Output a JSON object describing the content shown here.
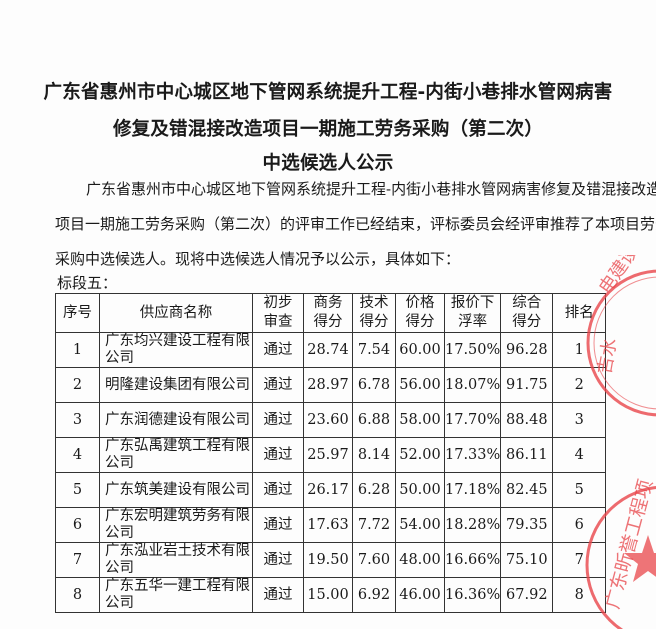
{
  "title": {
    "line1": "广东省惠州市中心城区地下管网系统提升工程-内街小巷排水管网病害",
    "line2": "修复及错混接改造项目一期施工劳务采购（第二次）",
    "line3": "中选候选人公示"
  },
  "paragraph": {
    "line1": "广东省惠州市中心城区地下管网系统提升工程-内街小巷排水管网病害修复及错混接改造",
    "line2": "项目一期施工劳务采购（第二次）的评审工作已经结束，评标委员会经评审推荐了本项目劳务",
    "line3": "采购中选候选人。现将中选候选人情况予以公示，具体如下："
  },
  "section_label": "标段五：",
  "table": {
    "headers": [
      {
        "l1": "序号",
        "l2": ""
      },
      {
        "l1": "供应商名称",
        "l2": ""
      },
      {
        "l1": "初步",
        "l2": "审查"
      },
      {
        "l1": "商务",
        "l2": "得分"
      },
      {
        "l1": "技术",
        "l2": "得分"
      },
      {
        "l1": "价格",
        "l2": "得分"
      },
      {
        "l1": "报价下",
        "l2": "浮率"
      },
      {
        "l1": "综合",
        "l2": "得分"
      },
      {
        "l1": "排名",
        "l2": ""
      }
    ],
    "rows": [
      {
        "no": "1",
        "name": "广东均兴建设工程有限公司",
        "review": "通过",
        "business": "28.74",
        "tech": "7.54",
        "price": "60.00",
        "rate": "17.50%",
        "total": "96.28",
        "rank": "1"
      },
      {
        "no": "2",
        "name": "明隆建设集团有限公司",
        "review": "通过",
        "business": "28.97",
        "tech": "6.78",
        "price": "56.00",
        "rate": "18.07%",
        "total": "91.75",
        "rank": "2"
      },
      {
        "no": "3",
        "name": "广东润德建设有限公司",
        "review": "通过",
        "business": "23.60",
        "tech": "6.88",
        "price": "58.00",
        "rate": "17.70%",
        "total": "88.48",
        "rank": "3"
      },
      {
        "no": "4",
        "name": "广东弘禹建筑工程有限公司",
        "review": "通过",
        "business": "25.97",
        "tech": "8.14",
        "price": "52.00",
        "rate": "17.33%",
        "total": "86.11",
        "rank": "4"
      },
      {
        "no": "5",
        "name": "广东筑美建设有限公司",
        "review": "通过",
        "business": "26.17",
        "tech": "6.28",
        "price": "50.00",
        "rate": "17.18%",
        "total": "82.45",
        "rank": "5"
      },
      {
        "no": "6",
        "name": "广东宏明建筑劳务有限公司",
        "review": "通过",
        "business": "17.63",
        "tech": "7.72",
        "price": "54.00",
        "rate": "18.28%",
        "total": "79.35",
        "rank": "6"
      },
      {
        "no": "7",
        "name": "广东泓业岩土技术有限公司",
        "review": "通过",
        "business": "19.50",
        "tech": "7.60",
        "price": "48.00",
        "rate": "16.66%",
        "total": "75.10",
        "rank": "7"
      },
      {
        "no": "8",
        "name": "广东五华一建工程有限公司",
        "review": "通过",
        "business": "15.00",
        "tech": "6.92",
        "price": "46.00",
        "rate": "16.36%",
        "total": "67.92",
        "rank": "8"
      }
    ]
  },
  "stamps": {
    "color": "#e8454a",
    "stamp1_text": "…吉水电建设工…",
    "stamp2_text": "广东昕誉工程项…"
  }
}
